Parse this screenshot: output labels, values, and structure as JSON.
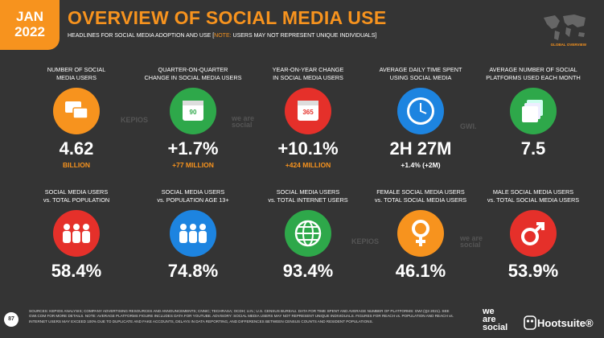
{
  "header": {
    "badge": [
      "JAN",
      "2022"
    ],
    "title": "OVERVIEW OF SOCIAL MEDIA USE",
    "subtitle": {
      "main": "HEADLINES FOR SOCIAL MEDIA ADOPTION AND USE [",
      "note_label": "NOTE:",
      "note": " USERS MAY NOT REPRESENT UNIQUE INDIVIDUALS]"
    },
    "section": "GLOBAL OVERVIEW"
  },
  "stats": [
    {
      "label": [
        "NUMBER OF SOCIAL",
        "MEDIA USERS"
      ],
      "value": "4.62",
      "sublabel": "BILLION",
      "sublabel_color": "#f7931e",
      "color": "#f7931e"
    },
    {
      "label": [
        "QUARTER-ON-QUARTER",
        "CHANGE IN SOCIAL MEDIA USERS"
      ],
      "icon_text": "90",
      "value": "+1.7%",
      "sublabel": "+77 MILLION",
      "sublabel_color": "#f7931e",
      "color": "#2ea84a"
    },
    {
      "label": [
        "YEAR-ON-YEAR CHANGE",
        "IN SOCIAL MEDIA USERS"
      ],
      "icon_text": "365",
      "value": "+10.1%",
      "sublabel": "+424 MILLION",
      "sublabel_color": "#f7931e",
      "color": "#e5302a"
    },
    {
      "label": [
        "AVERAGE DAILY TIME SPENT",
        "USING SOCIAL MEDIA"
      ],
      "value": "2H 27M",
      "sublabel": "+1.4% (+2M)",
      "sublabel_color": "#ffffff",
      "color": "#1d84e0"
    },
    {
      "label": [
        "AVERAGE NUMBER OF SOCIAL",
        "PLATFORMS USED EACH MONTH"
      ],
      "value": "7.5",
      "color": "#2ea84a"
    },
    {
      "label": [
        "SOCIAL MEDIA USERS",
        "vs. TOTAL POPULATION"
      ],
      "value": "58.4%",
      "color": "#e5302a"
    },
    {
      "label": [
        "SOCIAL MEDIA USERS",
        "vs. POPULATION AGE 13+"
      ],
      "value": "74.8%",
      "color": "#1d84e0"
    },
    {
      "label": [
        "SOCIAL MEDIA USERS",
        "vs. TOTAL INTERNET USERS"
      ],
      "value": "93.4%",
      "color": "#2ea84a"
    },
    {
      "label": [
        "FEMALE SOCIAL MEDIA USERS",
        "vs. TOTAL SOCIAL MEDIA USERS"
      ],
      "value": "46.1%",
      "color": "#f7931e"
    },
    {
      "label": [
        "MALE SOCIAL MEDIA USERS",
        "vs. TOTAL SOCIAL MEDIA USERS"
      ],
      "value": "53.9%",
      "color": "#e5302a"
    }
  ],
  "watermarks": [
    "KEPIOS",
    "we are social",
    "GWI.",
    "KEPIOS",
    "we are social"
  ],
  "footer": {
    "page": "87",
    "sources": "SOURCES: KEPIOS ANALYSIS; COMPANY ADVERTISING RESOURCES AND ANNOUNCEMENTS; CNNIC; TECHRASA; OCDH; U.N.; U.S. CENSUS BUREAU. DATA FOR TIME SPENT AND AVERAGE NUMBER OF PLATFORMS: GWI (Q3 2021). SEE GWI.COM FOR MORE DETAILS. NOTE: AVERAGE PLATFORMS FIGURE INCLUDES DATA FOR YOUTUBE. ADVISORY: SOCIAL MEDIA USERS MAY NOT REPRESENT UNIQUE INDIVIDUALS. FIGURES FOR REACH vs. POPULATION AND REACH vs. INTERNET USERS MAY EXCEED 100% DUE TO DUPLICATE AND FAKE ACCOUNTS, DELAYS IN DATA REPORTING, AND DIFFERENCES BETWEEN CENSUS COUNTS AND RESIDENT POPULATIONS.",
    "logo_was": [
      "we",
      "are",
      "social"
    ],
    "logo_hs": "Hootsuite®"
  }
}
